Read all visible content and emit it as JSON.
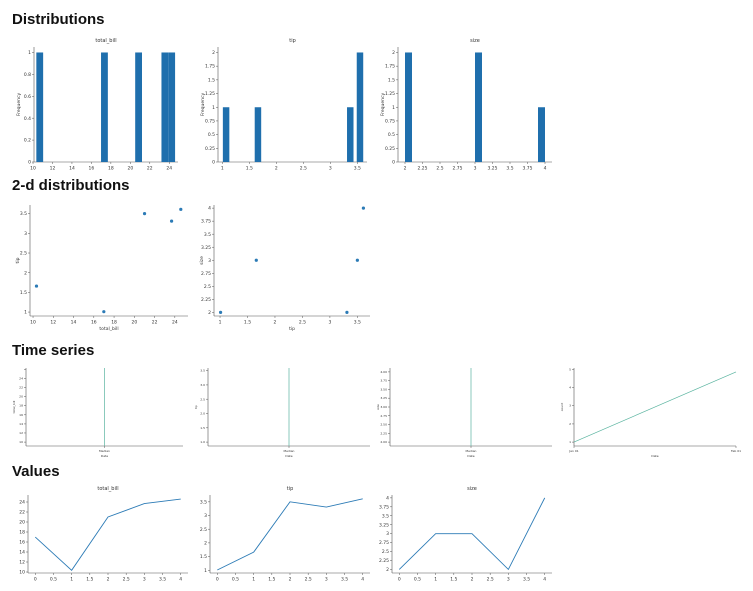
{
  "sections": {
    "distributions": "Distributions",
    "two_d": "2-d distributions",
    "time_series": "Time series",
    "values": "Values"
  },
  "colors": {
    "bar": "#1f6fad",
    "line": "#2c7bb6",
    "ts_line": "#5ab4a0",
    "axis": "#555555"
  },
  "chart_data": [
    {
      "id": "hist-total-bill",
      "type": "bar",
      "title": "total_bill",
      "xlabel": "",
      "ylabel": "Frequency",
      "xlim": [
        10.1,
        24.9
      ],
      "ylim": [
        0,
        1.05
      ],
      "xticks": [
        10,
        12,
        14,
        16,
        18,
        20,
        22,
        24
      ],
      "yticks": [
        0.0,
        0.2,
        0.4,
        0.6,
        0.8,
        1.0
      ],
      "bins": [
        [
          10.34,
          11.04,
          1
        ],
        [
          16.99,
          17.69,
          1
        ],
        [
          20.5,
          21.2,
          1
        ],
        [
          23.2,
          23.9,
          1
        ],
        [
          23.9,
          24.6,
          1
        ]
      ]
    },
    {
      "id": "hist-tip",
      "type": "bar",
      "title": "tip",
      "xlabel": "",
      "ylabel": "Frequency",
      "xlim": [
        0.92,
        3.68
      ],
      "ylim": [
        0,
        2.1
      ],
      "xticks": [
        1.0,
        1.5,
        2.0,
        2.5,
        3.0,
        3.5
      ],
      "yticks": [
        0.0,
        0.25,
        0.5,
        0.75,
        1.0,
        1.25,
        1.5,
        1.75,
        2.0
      ],
      "bins": [
        [
          1.01,
          1.13,
          1
        ],
        [
          1.6,
          1.72,
          1
        ],
        [
          3.31,
          3.43,
          1
        ],
        [
          3.49,
          3.61,
          2
        ]
      ]
    },
    {
      "id": "hist-size",
      "type": "bar",
      "title": "size",
      "xlabel": "",
      "ylabel": "Frequency",
      "xlim": [
        1.9,
        4.1
      ],
      "ylim": [
        0,
        2.1
      ],
      "xticks": [
        2.0,
        2.25,
        2.5,
        2.75,
        3.0,
        3.25,
        3.5,
        3.75,
        4.0
      ],
      "yticks": [
        0.0,
        0.25,
        0.5,
        0.75,
        1.0,
        1.25,
        1.5,
        1.75,
        2.0
      ],
      "bins": [
        [
          2.0,
          2.1,
          2
        ],
        [
          3.0,
          3.1,
          2
        ],
        [
          3.9,
          4.0,
          1
        ]
      ]
    },
    {
      "id": "scatter-bill-tip",
      "type": "scatter",
      "title": "",
      "xlabel": "total_bill",
      "ylabel": "tip",
      "xlim": [
        9.7,
        25.3
      ],
      "ylim": [
        0.9,
        3.72
      ],
      "xticks": [
        10,
        12,
        14,
        16,
        18,
        20,
        22,
        24
      ],
      "yticks": [
        1.0,
        1.5,
        2.0,
        2.5,
        3.0,
        3.5
      ],
      "points": [
        [
          16.99,
          1.01
        ],
        [
          10.34,
          1.66
        ],
        [
          21.01,
          3.5
        ],
        [
          23.68,
          3.31
        ],
        [
          24.59,
          3.61
        ]
      ]
    },
    {
      "id": "scatter-tip-size",
      "type": "scatter",
      "title": "",
      "xlabel": "tip",
      "ylabel": "size",
      "xlim": [
        0.89,
        3.73
      ],
      "ylim": [
        1.93,
        4.06
      ],
      "xticks": [
        1.0,
        1.5,
        2.0,
        2.5,
        3.0,
        3.5
      ],
      "yticks": [
        2.0,
        2.25,
        2.5,
        2.75,
        3.0,
        3.25,
        3.5,
        3.75,
        4.0
      ],
      "points": [
        [
          1.01,
          2
        ],
        [
          1.66,
          3
        ],
        [
          3.5,
          3
        ],
        [
          3.31,
          2
        ],
        [
          3.61,
          4
        ]
      ]
    },
    {
      "id": "ts-total-bill",
      "type": "line",
      "title": "",
      "xlabel": "Date",
      "ylabel": "total_bill",
      "xlim": [
        0,
        1
      ],
      "ylim": [
        0,
        1
      ],
      "xticks": [
        0.5
      ],
      "xticklabels": [
        "Median"
      ],
      "yticks": [
        0.05,
        0.167,
        0.283,
        0.4,
        0.517,
        0.633,
        0.75,
        0.867,
        0.983
      ],
      "yticklabels": [
        "10",
        "12",
        "14",
        "16",
        "18",
        "20",
        "22",
        "24",
        ""
      ],
      "series": [
        {
          "values": [
            [
              0.5,
              0.0
            ],
            [
              0.5,
              1.0
            ]
          ]
        }
      ]
    },
    {
      "id": "ts-tip",
      "type": "line",
      "title": "",
      "xlabel": "Date",
      "ylabel": "tip",
      "xlim": [
        0,
        1
      ],
      "ylim": [
        0,
        1
      ],
      "xticks": [
        0.5
      ],
      "xticklabels": [
        "Median"
      ],
      "yticks": [
        0.05,
        0.233,
        0.417,
        0.6,
        0.783,
        0.967
      ],
      "yticklabels": [
        "1.0",
        "1.5",
        "2.0",
        "2.5",
        "3.0",
        "3.5"
      ],
      "series": [
        {
          "values": [
            [
              0.5,
              0.0
            ],
            [
              0.5,
              1.0
            ]
          ]
        }
      ]
    },
    {
      "id": "ts-size",
      "type": "line",
      "title": "",
      "xlabel": "Date",
      "ylabel": "size",
      "xlim": [
        0,
        1
      ],
      "ylim": [
        0,
        1
      ],
      "xticks": [
        0.5
      ],
      "xticklabels": [
        "Median"
      ],
      "yticks": [
        0.05,
        0.163,
        0.275,
        0.388,
        0.5,
        0.613,
        0.725,
        0.838,
        0.95
      ],
      "yticklabels": [
        "2.00",
        "2.25",
        "2.50",
        "2.75",
        "3.00",
        "3.25",
        "3.50",
        "3.75",
        "4.00"
      ],
      "series": [
        {
          "values": [
            [
              0.5,
              0.0
            ],
            [
              0.5,
              1.0
            ]
          ]
        }
      ]
    },
    {
      "id": "ts-count",
      "type": "line",
      "title": "",
      "xlabel": "Date",
      "ylabel": "count",
      "xlim": [
        0,
        1
      ],
      "ylim": [
        0,
        1
      ],
      "xticks": [
        0.0,
        1.0
      ],
      "xticklabels": [
        "Jan 01",
        "Feb 01"
      ],
      "yticks": [
        0.05,
        0.283,
        0.517,
        0.75,
        0.983
      ],
      "yticklabels": [
        "1",
        "2",
        "3",
        "4",
        "5"
      ],
      "series": [
        {
          "values": [
            [
              0.0,
              0.05
            ],
            [
              1.0,
              0.95
            ]
          ]
        }
      ]
    },
    {
      "id": "values-total-bill",
      "type": "line",
      "title": "total_bill",
      "xlabel": "",
      "ylabel": "",
      "xlim": [
        -0.2,
        4.2
      ],
      "ylim": [
        9.8,
        25.4
      ],
      "xticks": [
        0.0,
        0.5,
        1.0,
        1.5,
        2.0,
        2.5,
        3.0,
        3.5,
        4.0
      ],
      "yticks": [
        10,
        12,
        14,
        16,
        18,
        20,
        22,
        24
      ],
      "series": [
        {
          "values": [
            [
              0,
              16.99
            ],
            [
              1,
              10.34
            ],
            [
              2,
              21.01
            ],
            [
              3,
              23.68
            ],
            [
              4,
              24.59
            ]
          ]
        }
      ]
    },
    {
      "id": "values-tip",
      "type": "line",
      "title": "tip",
      "xlabel": "",
      "ylabel": "",
      "xlim": [
        -0.2,
        4.2
      ],
      "ylim": [
        0.9,
        3.75
      ],
      "xticks": [
        0.0,
        0.5,
        1.0,
        1.5,
        2.0,
        2.5,
        3.0,
        3.5,
        4.0
      ],
      "yticks": [
        1.0,
        1.5,
        2.0,
        2.5,
        3.0,
        3.5
      ],
      "series": [
        {
          "values": [
            [
              0,
              1.01
            ],
            [
              1,
              1.66
            ],
            [
              2,
              3.5
            ],
            [
              3,
              3.31
            ],
            [
              4,
              3.61
            ]
          ]
        }
      ]
    },
    {
      "id": "values-size",
      "type": "line",
      "title": "size",
      "xlabel": "",
      "ylabel": "",
      "xlim": [
        -0.2,
        4.2
      ],
      "ylim": [
        1.9,
        4.08
      ],
      "xticks": [
        0.0,
        0.5,
        1.0,
        1.5,
        2.0,
        2.5,
        3.0,
        3.5,
        4.0
      ],
      "yticks": [
        2.0,
        2.25,
        2.5,
        2.75,
        3.0,
        3.25,
        3.5,
        3.75,
        4.0
      ],
      "series": [
        {
          "values": [
            [
              0,
              2
            ],
            [
              1,
              3
            ],
            [
              2,
              3
            ],
            [
              3,
              2
            ],
            [
              4,
              4
            ]
          ]
        }
      ]
    }
  ]
}
